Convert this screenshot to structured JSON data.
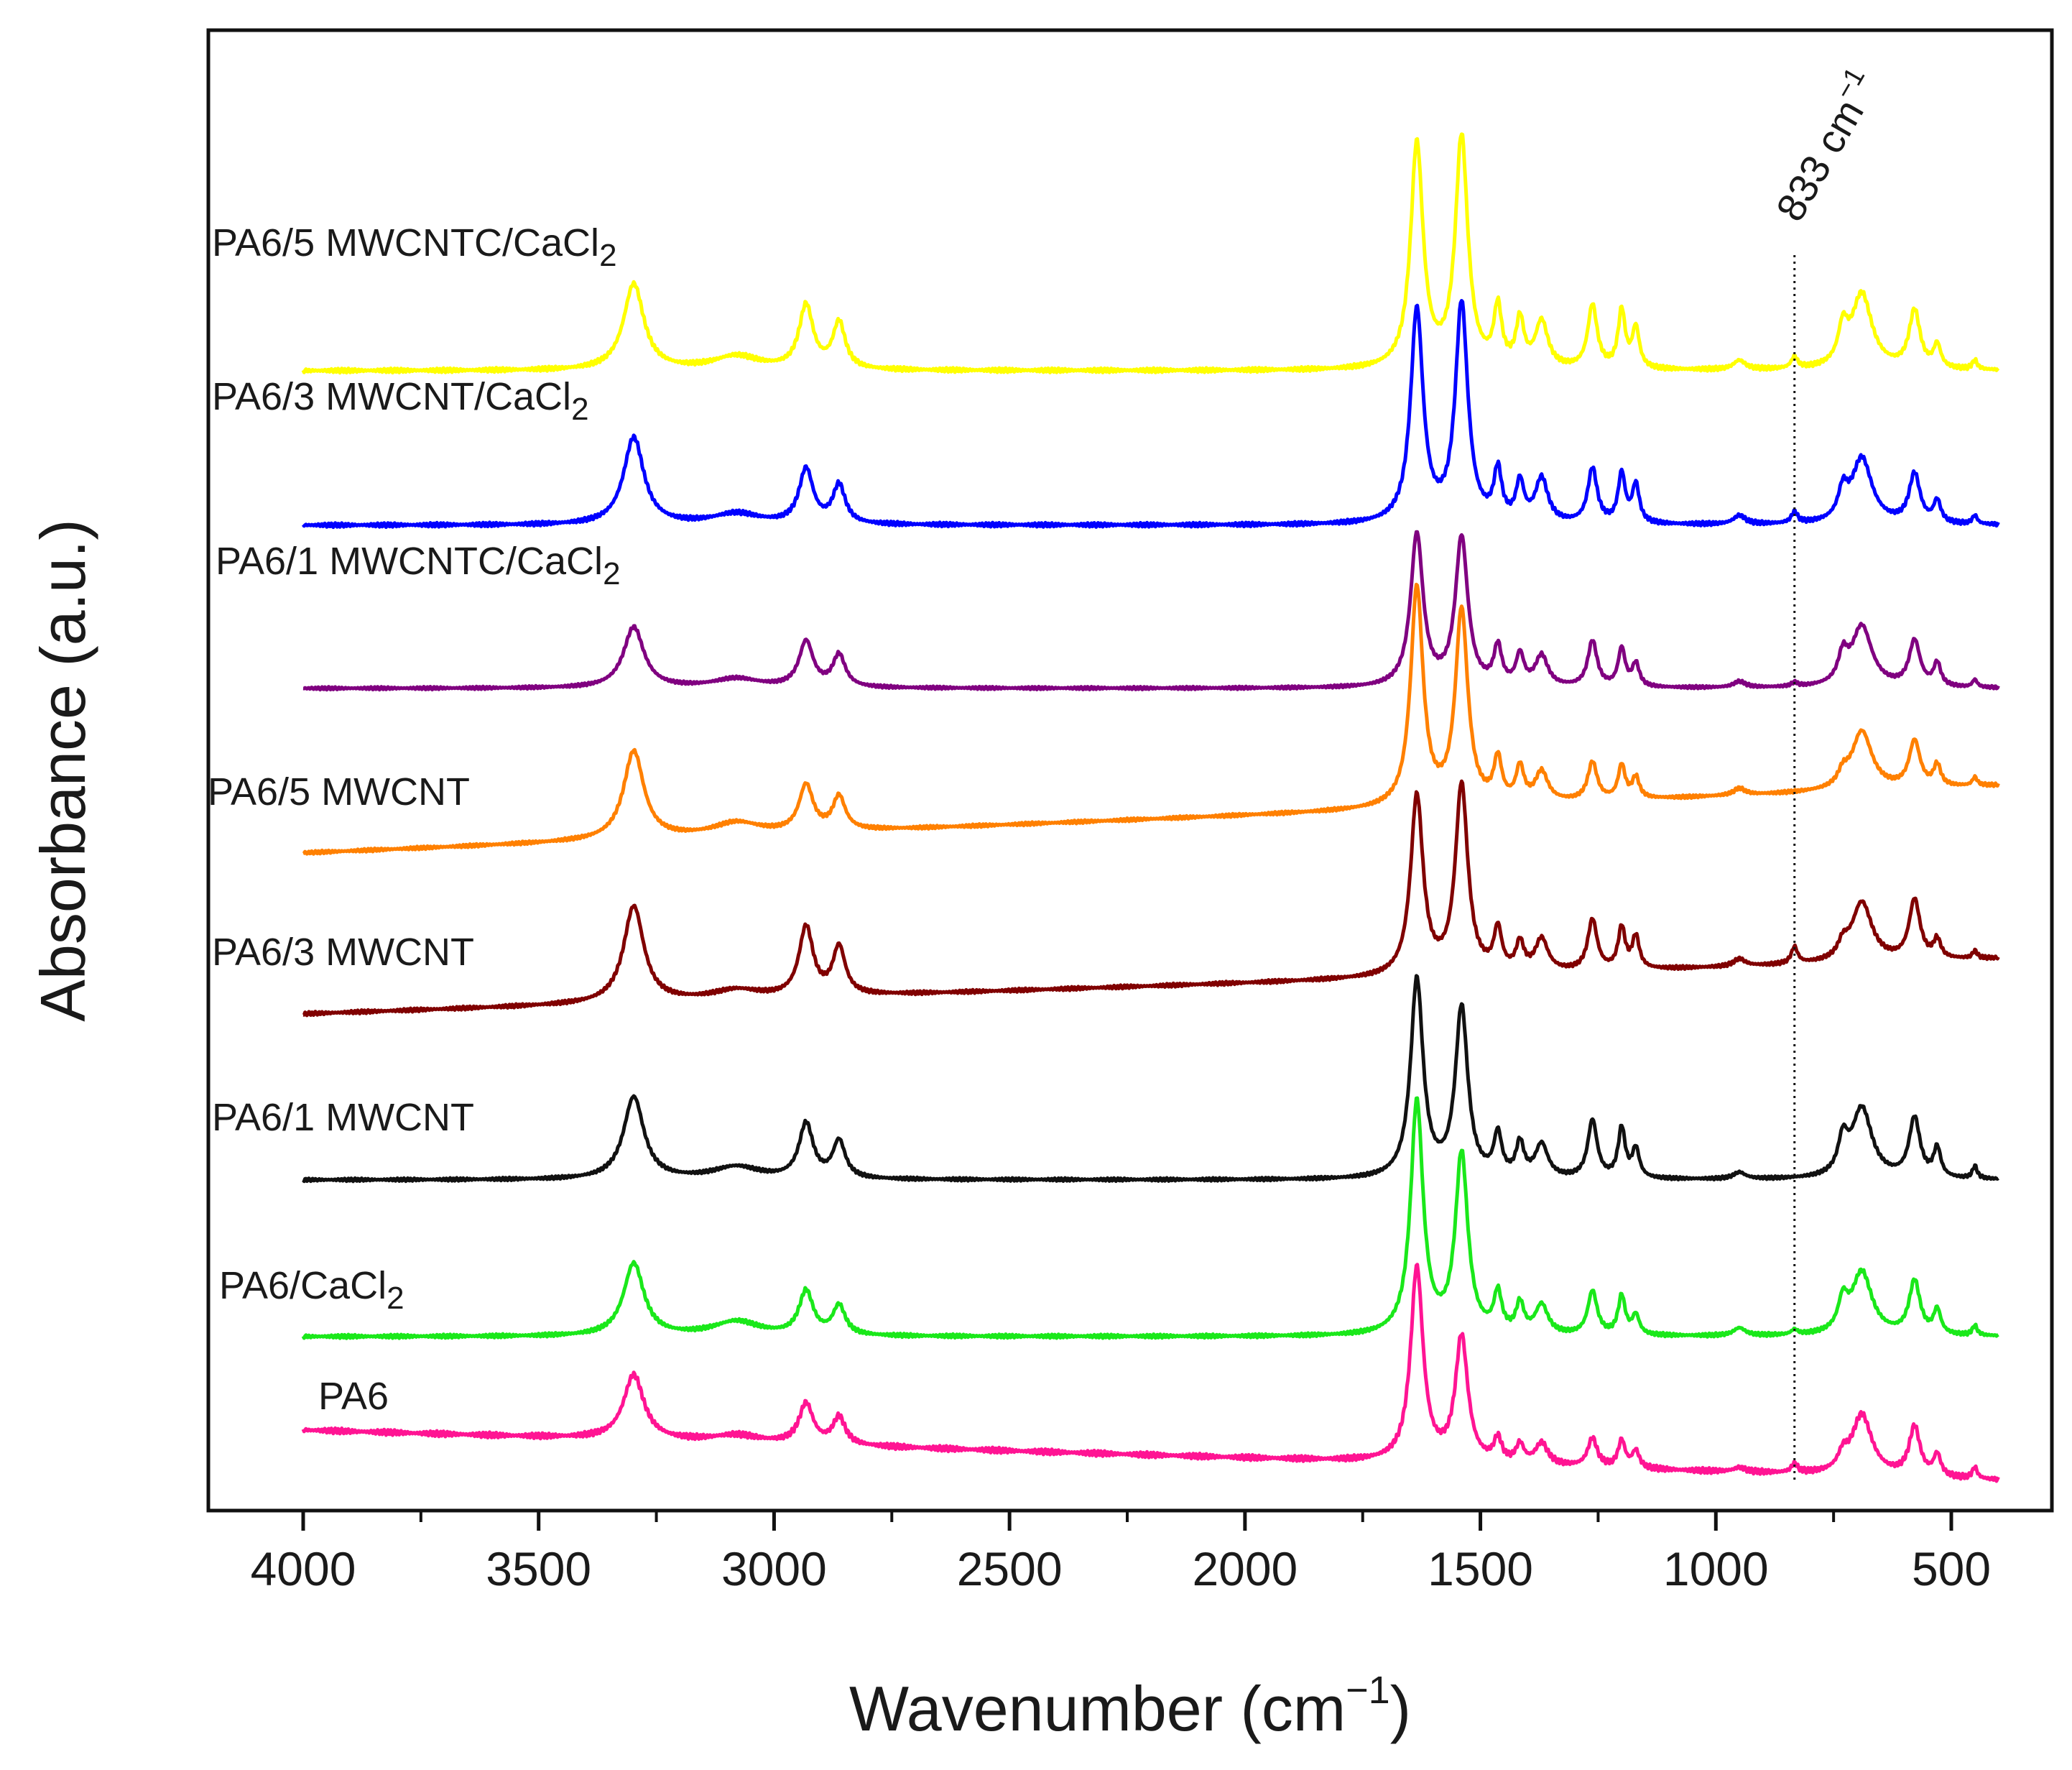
{
  "chart_data": {
    "type": "line",
    "xlabel": "Wavenumber",
    "xlabel_unit_prefix": "cm",
    "xlabel_unit_exponent": "−1",
    "ylabel": "Absorbance (a.u.)",
    "xlim": [
      4200,
      350
    ],
    "x_direction": "reversed",
    "x_ticks": [
      4000,
      3500,
      3000,
      2500,
      2000,
      1500,
      1000,
      500
    ],
    "x_tick_labels": [
      "4000",
      "3500",
      "3000",
      "2500",
      "2000",
      "1500",
      "1000",
      "500"
    ],
    "y_ticks_shown": false,
    "grid": false,
    "annotation": {
      "x": 833,
      "label": "833 cm",
      "exponent": "−1",
      "style": "dotted vertical line"
    },
    "series": [
      {
        "name": "PA6",
        "label_main": "PA6",
        "label_sub": "",
        "label_tail": "",
        "color": "#ff1493",
        "baseline_start": 0.0,
        "baseline_end": -0.35,
        "peaks": {
          "3298": 0.45,
          "3080": 0.05,
          "2932": 0.28,
          "2862": 0.19,
          "1635": 1.35,
          "1540": 0.87,
          "1463": 0.16,
          "1416": 0.13,
          "1370": 0.15,
          "1262": 0.2,
          "1200": 0.19,
          "1170": 0.12,
          "950": 0.03,
          "833": 0.06,
          "730": 0.1,
          "690": 0.42,
          "578": 0.34,
          "530": 0.15,
          "450": 0.08
        }
      },
      {
        "name": "PA6/CaCl2",
        "label_main": "PA6/CaCl",
        "label_sub": "2",
        "label_tail": "",
        "color": "#1ae81a",
        "baseline_start": 0.0,
        "baseline_end": 0.0,
        "peaks": {
          "3298": 0.75,
          "3080": 0.15,
          "2932": 0.45,
          "2862": 0.3,
          "1635": 2.4,
          "1540": 1.85,
          "1463": 0.4,
          "1416": 0.3,
          "1370": 0.3,
          "1262": 0.45,
          "1200": 0.4,
          "1170": 0.2,
          "950": 0.08,
          "833": 0.05,
          "730": 0.3,
          "690": 0.65,
          "578": 0.55,
          "530": 0.25,
          "450": 0.1
        }
      },
      {
        "name": "PA6/1 MWCNT",
        "label_main": "PA6/1 MWCNT",
        "label_sub": "",
        "label_tail": "",
        "color": "#111111",
        "baseline_start": 0.0,
        "baseline_end": 0.0,
        "peaks": {
          "3298": 1.0,
          "3080": 0.15,
          "2932": 0.66,
          "2862": 0.45,
          "1635": 2.4,
          "1540": 2.05,
          "1463": 0.5,
          "1416": 0.4,
          "1370": 0.4,
          "1262": 0.7,
          "1200": 0.6,
          "1170": 0.35,
          "950": 0.08,
          "730": 0.4,
          "690": 0.85,
          "578": 0.72,
          "530": 0.35,
          "450": 0.15
        }
      },
      {
        "name": "PA6/3 MWCNT",
        "label_main": "PA6/3 MWCNT",
        "label_sub": "",
        "label_tail": "",
        "color": "#800000",
        "baseline_start": 0.0,
        "baseline_end": 0.6,
        "peaks": {
          "3298": 1.05,
          "3080": 0.1,
          "2932": 0.75,
          "2862": 0.52,
          "1635": 1.95,
          "1540": 2.05,
          "1463": 0.45,
          "1416": 0.3,
          "1370": 0.35,
          "1262": 0.55,
          "1200": 0.45,
          "1170": 0.35,
          "950": 0.08,
          "833": 0.18,
          "730": 0.15,
          "690": 0.65,
          "578": 0.65,
          "530": 0.2,
          "450": 0.08
        }
      },
      {
        "name": "PA6/5 MWCNT",
        "label_main": "PA6/5 MWCNT",
        "label_sub": "",
        "label_tail": "",
        "color": "#ff8000",
        "baseline_start": 0.0,
        "baseline_end": 0.8,
        "peaks": {
          "3298": 1.05,
          "3080": 0.15,
          "2932": 0.55,
          "2862": 0.4,
          "1635": 2.6,
          "1540": 2.3,
          "1463": 0.5,
          "1416": 0.4,
          "1370": 0.35,
          "1262": 0.45,
          "1200": 0.4,
          "1170": 0.25,
          "950": 0.08,
          "730": 0.15,
          "690": 0.7,
          "578": 0.55,
          "530": 0.25,
          "450": 0.1
        }
      },
      {
        "name": "PA6/1 MWCNTC/CaCl2",
        "label_main": "PA6/1 MWCNTC/CaCl",
        "label_sub": "2",
        "label_tail": "",
        "color": "#800080",
        "baseline_start": 0.0,
        "baseline_end": 0.0,
        "peaks": {
          "3298": 0.8,
          "3080": 0.12,
          "2932": 0.6,
          "2862": 0.42,
          "1635": 2.0,
          "1540": 1.95,
          "1463": 0.5,
          "1416": 0.4,
          "1370": 0.4,
          "1262": 0.6,
          "1200": 0.5,
          "1170": 0.3,
          "950": 0.08,
          "833": 0.05,
          "730": 0.35,
          "690": 0.8,
          "578": 0.6,
          "530": 0.3,
          "450": 0.1
        }
      },
      {
        "name": "PA6/3 MWCNT/CaCl2",
        "label_main": "PA6/3 MWCNT/CaCl",
        "label_sub": "2",
        "label_tail": "",
        "color": "#0000ff",
        "baseline_start": 0.0,
        "baseline_end": 0.0,
        "peaks": {
          "3298": 0.8,
          "3080": 0.1,
          "2932": 0.5,
          "2862": 0.35,
          "1635": 1.95,
          "1540": 2.0,
          "1463": 0.45,
          "1416": 0.35,
          "1370": 0.4,
          "1262": 0.5,
          "1200": 0.45,
          "1170": 0.35,
          "950": 0.08,
          "833": 0.1,
          "730": 0.25,
          "690": 0.6,
          "578": 0.45,
          "530": 0.2,
          "450": 0.08
        }
      },
      {
        "name": "PA6/5 MWCNTC/CaCl2",
        "label_main": "PA6/5 MWCNTC/CaCl",
        "label_sub": "2",
        "label_tail": "",
        "color": "#ffff00",
        "baseline_start": 0.0,
        "baseline_end": 0.0,
        "peaks": {
          "3298": 0.75,
          "3080": 0.12,
          "2932": 0.55,
          "2862": 0.4,
          "1635": 1.95,
          "1540": 2.0,
          "1463": 0.5,
          "1416": 0.4,
          "1370": 0.4,
          "1262": 0.55,
          "1200": 0.5,
          "1170": 0.35,
          "950": 0.08,
          "833": 0.1,
          "730": 0.3,
          "690": 0.65,
          "578": 0.5,
          "530": 0.2,
          "450": 0.08
        }
      }
    ]
  }
}
